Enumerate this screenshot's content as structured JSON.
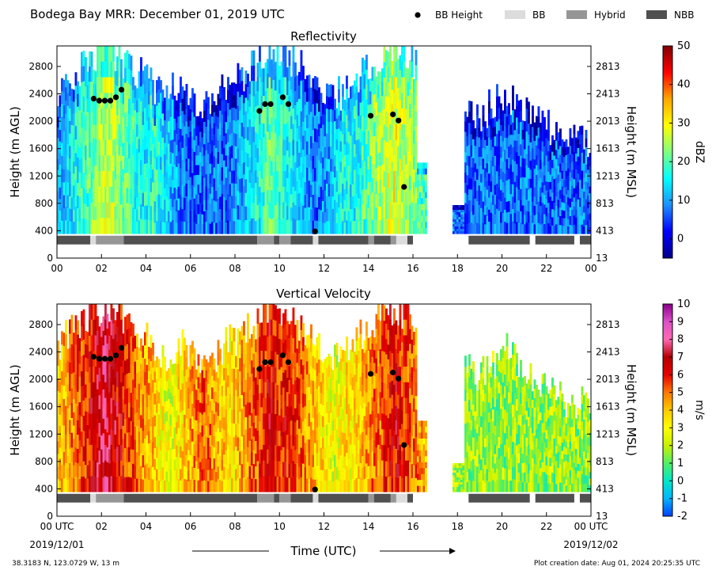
{
  "header": {
    "title": "Bodega Bay MRR:  December 01, 2019 UTC",
    "legend": [
      {
        "label": "BB Height",
        "kind": "dot",
        "color": "#000000"
      },
      {
        "label": "BB",
        "kind": "swatch",
        "color": "#dcdcdc"
      },
      {
        "label": "Hybrid",
        "kind": "swatch",
        "color": "#969696"
      },
      {
        "label": "NBB",
        "kind": "swatch",
        "color": "#505050"
      }
    ]
  },
  "footer": {
    "location": "38.3183 N, 123.0729 W, 13 m",
    "creation_date": "Plot creation date: Aug 01, 2024 20:25:35 UTC",
    "xlabel": "Time (UTC)",
    "start_date": "2019/12/01",
    "end_date": "2019/12/02"
  },
  "chart_data": [
    {
      "type": "heatmap",
      "title": "Reflectivity",
      "ylabel": "Height (m AGL)",
      "ylabel_right": "Height (m MSL)",
      "xlim": [
        0,
        24
      ],
      "ylim": [
        0,
        3100
      ],
      "y_ticks": [
        0,
        400,
        800,
        1200,
        1600,
        2000,
        2400,
        2800
      ],
      "y_ticks_right": [
        "13",
        "413",
        "813",
        "1213",
        "1613",
        "2013",
        "2413",
        "2813"
      ],
      "x_ticks": [
        "00",
        "02",
        "04",
        "06",
        "08",
        "10",
        "12",
        "14",
        "16",
        "18",
        "20",
        "22",
        "00"
      ],
      "colorbar": {
        "label": "dBZ",
        "min": -5,
        "max": 50,
        "ticks": [
          0,
          10,
          20,
          30,
          40,
          50
        ],
        "stops": [
          "#00008b",
          "#0000ff",
          "#1e90ff",
          "#00ffff",
          "#7fff7f",
          "#ffff00",
          "#ffa500",
          "#ff0000",
          "#800000"
        ]
      },
      "bb_height": {
        "t": [
          1.65,
          1.9,
          2.15,
          2.4,
          2.65,
          2.9,
          9.1,
          9.35,
          9.6,
          10.15,
          10.4,
          11.6,
          14.1,
          15.1,
          15.35,
          15.6
        ],
        "h": [
          2330,
          2300,
          2300,
          2300,
          2350,
          2460,
          2150,
          2250,
          2250,
          2350,
          2250,
          390,
          2080,
          2100,
          2010,
          1040
        ]
      },
      "bb_class": {
        "categories": [
          "BB",
          "Hybrid",
          "NBB"
        ],
        "segments": [
          {
            "start": 0.0,
            "end": 1.5,
            "class": "NBB"
          },
          {
            "start": 1.5,
            "end": 1.75,
            "class": "BB"
          },
          {
            "start": 1.75,
            "end": 3.0,
            "class": "Hybrid"
          },
          {
            "start": 3.0,
            "end": 9.0,
            "class": "NBB"
          },
          {
            "start": 9.0,
            "end": 9.75,
            "class": "Hybrid"
          },
          {
            "start": 9.75,
            "end": 10.0,
            "class": "NBB"
          },
          {
            "start": 10.0,
            "end": 10.5,
            "class": "Hybrid"
          },
          {
            "start": 10.5,
            "end": 11.5,
            "class": "NBB"
          },
          {
            "start": 11.5,
            "end": 11.75,
            "class": "BB"
          },
          {
            "start": 11.75,
            "end": 14.0,
            "class": "NBB"
          },
          {
            "start": 14.0,
            "end": 14.25,
            "class": "Hybrid"
          },
          {
            "start": 14.25,
            "end": 15.0,
            "class": "NBB"
          },
          {
            "start": 15.0,
            "end": 15.25,
            "class": "Hybrid"
          },
          {
            "start": 15.25,
            "end": 15.75,
            "class": "BB"
          },
          {
            "start": 15.75,
            "end": 16.0,
            "class": "NBB"
          },
          {
            "start": 18.5,
            "end": 21.25,
            "class": "NBB"
          },
          {
            "start": 21.5,
            "end": 23.25,
            "class": "NBB"
          },
          {
            "start": 23.5,
            "end": 24.0,
            "class": "NBB"
          }
        ]
      }
    },
    {
      "type": "heatmap",
      "title": "Vertical Velocity",
      "ylabel": "Height (m AGL)",
      "ylabel_right": "Height (m MSL)",
      "xlim": [
        0,
        24
      ],
      "ylim": [
        0,
        3100
      ],
      "y_ticks": [
        0,
        400,
        800,
        1200,
        1600,
        2000,
        2400,
        2800
      ],
      "y_ticks_right": [
        "13",
        "413",
        "813",
        "1213",
        "1613",
        "2013",
        "2413",
        "2813"
      ],
      "x_ticks": [
        "00 UTC",
        "02",
        "04",
        "06",
        "08",
        "10",
        "12",
        "14",
        "16",
        "18",
        "20",
        "22",
        "00 UTC"
      ],
      "colorbar": {
        "label": "m/s",
        "min": -2,
        "max": 10,
        "ticks": [
          -2,
          -1,
          0,
          1,
          2,
          3,
          4,
          5,
          6,
          7,
          8,
          9,
          10
        ],
        "stops": [
          "#0040ff",
          "#00b4ff",
          "#00e6c8",
          "#50f064",
          "#c8f000",
          "#ffff00",
          "#ffc800",
          "#ff7800",
          "#e60000",
          "#b40000",
          "#ff69b4",
          "#dc50c8",
          "#8c008c"
        ]
      },
      "bb_height": {
        "t": [
          1.65,
          1.9,
          2.15,
          2.4,
          2.65,
          2.9,
          9.1,
          9.35,
          9.6,
          10.15,
          10.4,
          11.6,
          14.1,
          15.1,
          15.35,
          15.6
        ],
        "h": [
          2330,
          2300,
          2300,
          2300,
          2350,
          2460,
          2150,
          2250,
          2250,
          2350,
          2250,
          390,
          2080,
          2100,
          2010,
          1040
        ]
      },
      "bb_class": {
        "categories": [
          "BB",
          "Hybrid",
          "NBB"
        ],
        "segments": [
          {
            "start": 0.0,
            "end": 1.5,
            "class": "NBB"
          },
          {
            "start": 1.5,
            "end": 1.75,
            "class": "BB"
          },
          {
            "start": 1.75,
            "end": 3.0,
            "class": "Hybrid"
          },
          {
            "start": 3.0,
            "end": 9.0,
            "class": "NBB"
          },
          {
            "start": 9.0,
            "end": 9.75,
            "class": "Hybrid"
          },
          {
            "start": 9.75,
            "end": 10.0,
            "class": "NBB"
          },
          {
            "start": 10.0,
            "end": 10.5,
            "class": "Hybrid"
          },
          {
            "start": 10.5,
            "end": 11.5,
            "class": "NBB"
          },
          {
            "start": 11.5,
            "end": 11.75,
            "class": "BB"
          },
          {
            "start": 11.75,
            "end": 14.0,
            "class": "NBB"
          },
          {
            "start": 14.0,
            "end": 14.25,
            "class": "Hybrid"
          },
          {
            "start": 14.25,
            "end": 15.0,
            "class": "NBB"
          },
          {
            "start": 15.0,
            "end": 15.25,
            "class": "Hybrid"
          },
          {
            "start": 15.25,
            "end": 15.75,
            "class": "BB"
          },
          {
            "start": 15.75,
            "end": 16.0,
            "class": "NBB"
          },
          {
            "start": 18.5,
            "end": 21.25,
            "class": "NBB"
          },
          {
            "start": 21.5,
            "end": 23.25,
            "class": "NBB"
          },
          {
            "start": 23.5,
            "end": 24.0,
            "class": "NBB"
          }
        ]
      }
    }
  ]
}
